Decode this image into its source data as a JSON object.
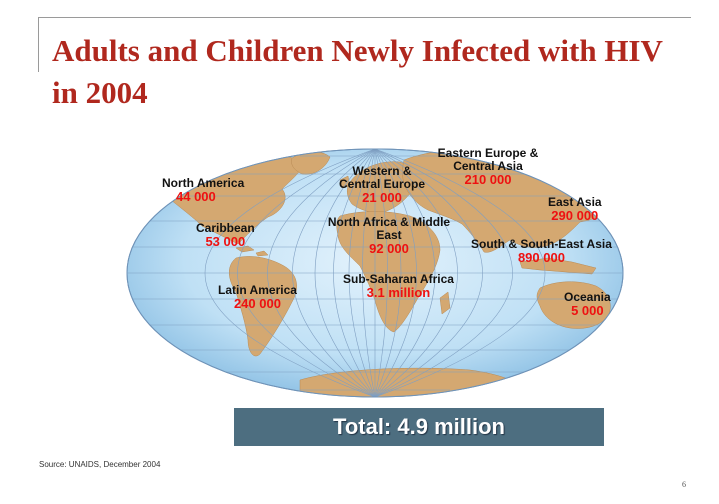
{
  "title": "Adults and Children Newly Infected with HIV in 2004",
  "regions": [
    {
      "name": "North America",
      "value": "44 000"
    },
    {
      "name": "Caribbean",
      "value": "53 000"
    },
    {
      "name": "Latin America",
      "value": "240 000"
    },
    {
      "name": "Western & Central Europe",
      "value": "21 000"
    },
    {
      "name": "North Africa & Middle East",
      "value": "92 000"
    },
    {
      "name": "Sub-Saharan Africa",
      "value": "3.1 million"
    },
    {
      "name": "Eastern Europe & Central Asia",
      "value": "210 000"
    },
    {
      "name": "East Asia",
      "value": "290 000"
    },
    {
      "name": "South & South-East Asia",
      "value": "890 000"
    },
    {
      "name": "Oceania",
      "value": "5 000"
    }
  ],
  "total": "Total: 4.9 million",
  "source": "Source: UNAIDS, December 2004",
  "page_number": "6",
  "colors": {
    "title": "#b0281e",
    "ocean": "#bfe0f5",
    "land": "#d4a871",
    "value_text": "#ee1111",
    "total_box": "#4d6e80"
  }
}
